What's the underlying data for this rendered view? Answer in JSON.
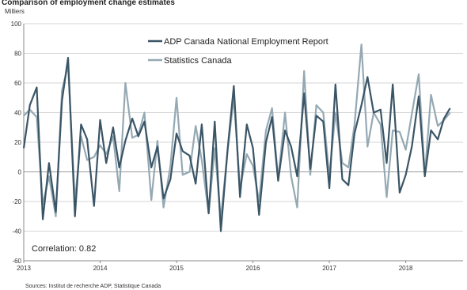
{
  "chart_data": {
    "type": "line",
    "title": "Comparison of employment change estimates",
    "ylabel": "Milliers",
    "ylim": [
      -60,
      100
    ],
    "yticks": [
      -60,
      -40,
      -20,
      0,
      20,
      40,
      60,
      80,
      100
    ],
    "xticks": [
      "2013",
      "2014",
      "2015",
      "2016",
      "2017",
      "2018"
    ],
    "xrange": [
      2013.0,
      2018.75
    ],
    "grid": true,
    "legend_position": "top-center",
    "correlation_label": "Correlation: 0.82",
    "source": "Sources: Institut de recherche ADP, Statistique Canada",
    "series": [
      {
        "name": "ADP Canada National Employment Report",
        "color": "#3a5566",
        "x": [
          2013.0,
          2013.08,
          2013.17,
          2013.25,
          2013.33,
          2013.42,
          2013.5,
          2013.58,
          2013.67,
          2013.75,
          2013.83,
          2013.92,
          2014.0,
          2014.08,
          2014.17,
          2014.25,
          2014.33,
          2014.42,
          2014.5,
          2014.58,
          2014.67,
          2014.75,
          2014.83,
          2014.92,
          2015.0,
          2015.08,
          2015.17,
          2015.25,
          2015.33,
          2015.42,
          2015.5,
          2015.58,
          2015.67,
          2015.75,
          2015.83,
          2015.92,
          2016.0,
          2016.08,
          2016.17,
          2016.25,
          2016.33,
          2016.42,
          2016.5,
          2016.58,
          2016.67,
          2016.75,
          2016.83,
          2016.92,
          2017.0,
          2017.08,
          2017.17,
          2017.25,
          2017.33,
          2017.42,
          2017.5,
          2017.58,
          2017.67,
          2017.75,
          2017.83,
          2017.92,
          2018.0,
          2018.08,
          2018.17,
          2018.25,
          2018.33,
          2018.42,
          2018.5,
          2018.58
        ],
        "values": [
          16,
          45,
          57,
          -32,
          6,
          -27,
          48,
          77,
          -30,
          32,
          22,
          -23,
          35,
          6,
          30,
          3,
          21,
          36,
          24,
          34,
          3,
          17,
          -18,
          -5,
          26,
          14,
          11,
          -8,
          32,
          -28,
          34,
          -40,
          16,
          58,
          -17,
          32,
          16,
          -29,
          20,
          37,
          -6,
          28,
          17,
          -3,
          53,
          2,
          38,
          34,
          -11,
          59,
          -5,
          -9,
          26,
          45,
          64,
          40,
          42,
          6,
          59,
          -14,
          -2,
          17,
          51,
          -3,
          28,
          22,
          36,
          43
        ]
      },
      {
        "name": "Statistics Canada",
        "color": "#95a9b3",
        "x": [
          2013.0,
          2013.08,
          2013.17,
          2013.25,
          2013.33,
          2013.42,
          2013.5,
          2013.58,
          2013.67,
          2013.75,
          2013.83,
          2013.92,
          2014.0,
          2014.08,
          2014.17,
          2014.25,
          2014.33,
          2014.42,
          2014.5,
          2014.58,
          2014.67,
          2014.75,
          2014.83,
          2014.92,
          2015.0,
          2015.08,
          2015.17,
          2015.25,
          2015.33,
          2015.42,
          2015.5,
          2015.58,
          2015.67,
          2015.75,
          2015.83,
          2015.92,
          2016.0,
          2016.08,
          2016.17,
          2016.25,
          2016.33,
          2016.42,
          2016.5,
          2016.58,
          2016.67,
          2016.75,
          2016.83,
          2016.92,
          2017.0,
          2017.08,
          2017.17,
          2017.25,
          2017.33,
          2017.42,
          2017.5,
          2017.58,
          2017.67,
          2017.75,
          2017.83,
          2017.92,
          2018.0,
          2018.08,
          2018.17,
          2018.25,
          2018.33,
          2018.42,
          2018.5,
          2018.58
        ],
        "values": [
          38,
          42,
          37,
          -22,
          -3,
          -30,
          55,
          72,
          -20,
          24,
          8,
          10,
          18,
          12,
          24,
          -13,
          60,
          23,
          25,
          40,
          -19,
          21,
          -24,
          4,
          50,
          -2,
          0,
          31,
          8,
          -28,
          16,
          -32,
          15,
          50,
          -11,
          12,
          4,
          -20,
          28,
          43,
          -5,
          40,
          -3,
          -24,
          68,
          -2,
          45,
          40,
          -3,
          40,
          6,
          3,
          32,
          86,
          17,
          40,
          32,
          -17,
          28,
          27,
          15,
          39,
          66,
          -2,
          52,
          31,
          35,
          40
        ]
      }
    ]
  }
}
